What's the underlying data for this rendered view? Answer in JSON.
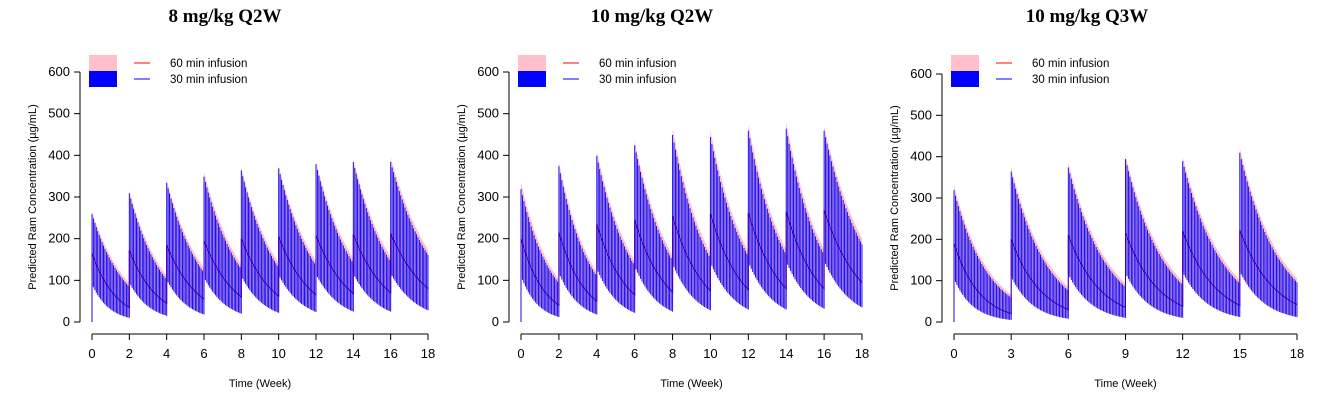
{
  "chart_data": [
    {
      "type": "line",
      "title": "8 mg/kg Q2W",
      "xlabel": "Time (Week)",
      "ylabel": "Predicted Ram Concentration (µg/mL)",
      "xlim": [
        0,
        18
      ],
      "ylim": [
        0,
        600
      ],
      "x_ticks": [
        0,
        2,
        4,
        6,
        8,
        10,
        12,
        14,
        16,
        18
      ],
      "y_ticks": [
        0,
        100,
        200,
        300,
        400,
        500,
        600
      ],
      "dose_interval_weeks": 2,
      "dose_times": [
        0,
        2,
        4,
        6,
        8,
        10,
        12,
        14,
        16
      ],
      "legend_position": "top-left",
      "series": [
        {
          "name": "60 min infusion",
          "color": "#FF0000",
          "band_color": "#FFC0CB",
          "median_peak": [
            165,
            172,
            185,
            195,
            200,
            205,
            208,
            210,
            212
          ],
          "median_trough": [
            35,
            45,
            55,
            60,
            62,
            65,
            68,
            70,
            80
          ],
          "upper_peak": [
            265,
            315,
            340,
            360,
            370,
            375,
            385,
            390,
            395
          ],
          "lower_trough": [
            10,
            15,
            18,
            20,
            22,
            24,
            25,
            25,
            28
          ]
        },
        {
          "name": "30 min infusion",
          "color": "#0000FF",
          "band_color": "#0000FF",
          "median_peak": [
            165,
            172,
            185,
            195,
            200,
            205,
            208,
            210,
            212
          ],
          "median_trough": [
            35,
            45,
            55,
            60,
            62,
            65,
            68,
            70,
            80
          ],
          "upper_peak": [
            265,
            315,
            340,
            355,
            370,
            375,
            385,
            390,
            390
          ],
          "lower_trough": [
            10,
            15,
            18,
            20,
            22,
            24,
            25,
            25,
            28
          ]
        }
      ]
    },
    {
      "type": "line",
      "title": "10 mg/kg Q2W",
      "xlabel": "Time (Week)",
      "ylabel": "Predicted Ram Concentration (µg/mL)",
      "xlim": [
        0,
        18
      ],
      "ylim": [
        0,
        600
      ],
      "x_ticks": [
        0,
        2,
        4,
        6,
        8,
        10,
        12,
        14,
        16,
        18
      ],
      "y_ticks": [
        0,
        100,
        200,
        300,
        400,
        500,
        600
      ],
      "dose_interval_weeks": 2,
      "dose_times": [
        0,
        2,
        4,
        6,
        8,
        10,
        12,
        14,
        16
      ],
      "legend_position": "top-left",
      "series": [
        {
          "name": "60 min infusion",
          "color": "#FF0000",
          "band_color": "#FFC0CB",
          "median_peak": [
            200,
            215,
            235,
            245,
            255,
            260,
            262,
            265,
            268
          ],
          "median_trough": [
            40,
            50,
            65,
            72,
            75,
            78,
            80,
            80,
            95
          ],
          "upper_peak": [
            335,
            385,
            410,
            435,
            465,
            460,
            475,
            480,
            470
          ],
          "lower_trough": [
            12,
            18,
            22,
            25,
            28,
            30,
            30,
            32,
            35
          ]
        },
        {
          "name": "30 min infusion",
          "color": "#0000FF",
          "band_color": "#0000FF",
          "median_peak": [
            200,
            215,
            235,
            245,
            255,
            260,
            262,
            265,
            268
          ],
          "median_trough": [
            40,
            50,
            65,
            72,
            75,
            78,
            80,
            80,
            95
          ],
          "upper_peak": [
            325,
            380,
            405,
            430,
            455,
            450,
            465,
            470,
            465
          ],
          "lower_trough": [
            12,
            18,
            22,
            25,
            28,
            30,
            30,
            32,
            35
          ]
        }
      ]
    },
    {
      "type": "line",
      "title": "10 mg/kg Q3W",
      "xlabel": "Time (Week)",
      "ylabel": "Predicted Ram Concentration (µg/mL)",
      "xlim": [
        0,
        18
      ],
      "ylim": [
        0,
        600
      ],
      "x_ticks": [
        0,
        3,
        6,
        9,
        12,
        15,
        18
      ],
      "y_ticks": [
        0,
        100,
        200,
        300,
        400,
        500,
        600
      ],
      "dose_interval_weeks": 3,
      "dose_times": [
        0,
        3,
        6,
        9,
        12,
        15
      ],
      "legend_position": "top-left",
      "series": [
        {
          "name": "60 min infusion",
          "color": "#FF0000",
          "band_color": "#FFC0CB",
          "median_peak": [
            190,
            200,
            210,
            215,
            220,
            222
          ],
          "median_trough": [
            20,
            30,
            35,
            38,
            40,
            42
          ],
          "upper_peak": [
            330,
            375,
            385,
            405,
            400,
            420
          ],
          "lower_trough": [
            5,
            8,
            10,
            10,
            12,
            12
          ]
        },
        {
          "name": "30 min infusion",
          "color": "#0000FF",
          "band_color": "#0000FF",
          "median_peak": [
            190,
            200,
            210,
            215,
            220,
            222
          ],
          "median_trough": [
            20,
            30,
            35,
            38,
            40,
            42
          ],
          "upper_peak": [
            325,
            370,
            380,
            400,
            395,
            415
          ],
          "lower_trough": [
            5,
            8,
            10,
            10,
            12,
            12
          ]
        }
      ]
    }
  ]
}
